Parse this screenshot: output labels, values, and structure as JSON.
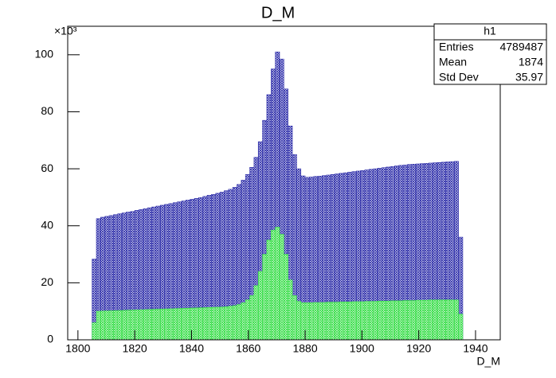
{
  "chart_data": {
    "type": "histogram",
    "title": "D_M",
    "x_label": "D_M",
    "y_multiplier": "×10³",
    "xlim": [
      1796.4,
      1948.7
    ],
    "ylim": [
      0,
      110
    ],
    "xticks": [
      1800,
      1820,
      1840,
      1860,
      1880,
      1900,
      1920,
      1940
    ],
    "yticks": [
      0,
      20,
      40,
      60,
      80,
      100
    ],
    "bins": [
      1805,
      1806.5,
      1808,
      1809.5,
      1811,
      1812.5,
      1814,
      1815.5,
      1817,
      1818.5,
      1820,
      1821.5,
      1823,
      1824.5,
      1826,
      1827.5,
      1829,
      1830.5,
      1832,
      1833.5,
      1835,
      1836.5,
      1838,
      1839.5,
      1841,
      1842.5,
      1844,
      1845.5,
      1847,
      1848.5,
      1850,
      1851.5,
      1853,
      1854.5,
      1856,
      1857.5,
      1859,
      1860.5,
      1862,
      1863.5,
      1865,
      1866.5,
      1868,
      1869.5,
      1871,
      1872.5,
      1874,
      1875.5,
      1877,
      1878.5,
      1880,
      1881.5,
      1883,
      1884.5,
      1886,
      1887.5,
      1889,
      1890.5,
      1892,
      1893.5,
      1895,
      1896.5,
      1898,
      1899.5,
      1901,
      1902.5,
      1904,
      1905.5,
      1907,
      1908.5,
      1910,
      1911.5,
      1913,
      1914.5,
      1916,
      1917.5,
      1919,
      1920.5,
      1922,
      1923.5,
      1925,
      1926.5,
      1928,
      1929.5,
      1931,
      1932.5,
      1934,
      1935.5
    ],
    "series": [
      {
        "color": "#2a2aa8",
        "values": [
          28.3,
          42.5,
          43.0,
          43.3,
          43.6,
          43.9,
          44.2,
          44.5,
          44.8,
          45.0,
          45.4,
          45.7,
          46.0,
          46.3,
          46.6,
          46.9,
          47.2,
          47.5,
          47.8,
          48.1,
          48.4,
          48.7,
          49.0,
          49.3,
          49.6,
          49.9,
          50.3,
          50.7,
          51.0,
          51.4,
          51.8,
          52.3,
          52.8,
          53.5,
          54.5,
          56.0,
          58.0,
          60.5,
          64.0,
          69.5,
          77.0,
          86.0,
          95.0,
          101.0,
          98.5,
          88.0,
          75.0,
          65.0,
          60.0,
          57.5,
          57.0,
          57.1,
          57.3,
          57.4,
          57.6,
          57.8,
          58.0,
          58.2,
          58.4,
          58.6,
          58.8,
          59.0,
          59.2,
          59.4,
          59.6,
          59.8,
          60.0,
          60.2,
          60.4,
          60.6,
          60.8,
          61.0,
          61.2,
          61.3,
          61.5,
          61.6,
          61.7,
          61.8,
          61.9,
          62.0,
          62.1,
          62.2,
          62.3,
          62.4,
          62.5,
          62.6,
          36.0
        ]
      },
      {
        "color": "#33dd44",
        "values": [
          6.0,
          10.05,
          10.1,
          10.15,
          10.2,
          10.25,
          10.3,
          10.35,
          10.4,
          10.45,
          10.5,
          10.55,
          10.6,
          10.65,
          10.7,
          10.75,
          10.8,
          10.85,
          10.9,
          10.95,
          11.0,
          11.05,
          11.1,
          11.15,
          11.2,
          11.25,
          11.3,
          11.35,
          11.4,
          11.45,
          11.5,
          11.6,
          11.8,
          12.0,
          12.4,
          13.0,
          14.0,
          15.5,
          19.0,
          24.0,
          30.0,
          35.0,
          38.5,
          39.5,
          37.0,
          30.0,
          21.0,
          15.5,
          13.5,
          13.0,
          13.0,
          13.0,
          13.1,
          13.1,
          13.1,
          13.2,
          13.2,
          13.2,
          13.3,
          13.3,
          13.3,
          13.4,
          13.4,
          13.4,
          13.5,
          13.5,
          13.5,
          13.6,
          13.6,
          13.6,
          13.7,
          13.7,
          13.7,
          13.8,
          13.8,
          13.8,
          13.9,
          13.9,
          13.9,
          14.0,
          14.0,
          14.0,
          14.0,
          14.0,
          14.0,
          14.0,
          9.0
        ]
      }
    ],
    "stats": {
      "title": "h1",
      "rows": [
        [
          "Entries",
          "4789487"
        ],
        [
          "Mean",
          "1874"
        ],
        [
          "Std Dev",
          "35.97"
        ]
      ]
    }
  }
}
